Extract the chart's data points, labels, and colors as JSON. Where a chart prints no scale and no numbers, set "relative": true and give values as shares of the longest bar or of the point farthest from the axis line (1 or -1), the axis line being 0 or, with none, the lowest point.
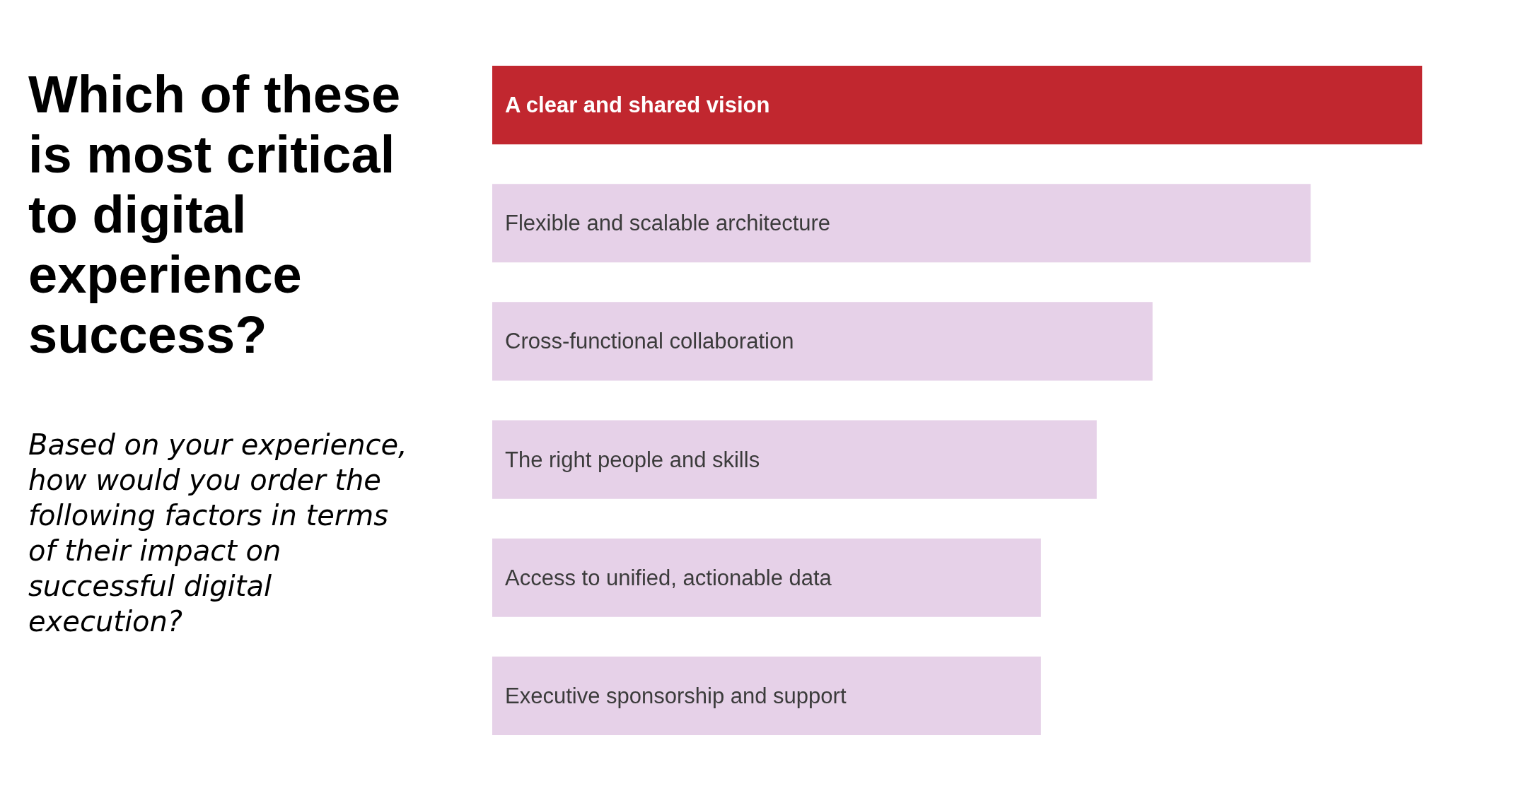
{
  "chart_data": {
    "type": "bar",
    "orientation": "horizontal",
    "relative": true,
    "title": "Which of these is most critical to digital experience success?",
    "subtitle": "Based on your experience, how would you order the following factors in terms of their impact on successful digital execution?",
    "categories": [
      "A clear and shared vision",
      "Flexible and scalable architecture",
      "Cross-functional collaboration",
      "The right people and skills",
      "Access to unified, actionable data",
      "Executive sponsorship and support"
    ],
    "values": [
      1,
      0.88,
      0.71,
      0.65,
      0.59,
      0.59
    ],
    "colors": [
      "#c1272f",
      "#e6d1e8",
      "#e6d1e8",
      "#e6d1e8",
      "#e6d1e8",
      "#e6d1e8"
    ]
  }
}
